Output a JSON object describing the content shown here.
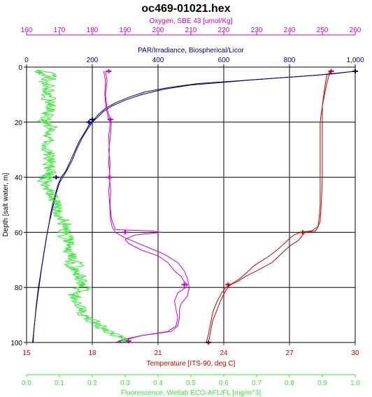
{
  "chart_data": {
    "type": "line",
    "title": "oc469-01021.hex",
    "grid": true,
    "y_axis": {
      "label": "Depth [salt water, m]",
      "range": [
        0,
        100
      ],
      "inverted": true,
      "ticks": [
        "0",
        "20",
        "40",
        "60",
        "80",
        "100"
      ],
      "color": "#000000"
    },
    "axes": [
      {
        "key": "oxygen",
        "position": "top-outer",
        "label": "Oxygen, SBE 43 [umol/Kg]",
        "range": [
          160,
          260
        ],
        "ticks": [
          "160",
          "170",
          "180",
          "190",
          "200",
          "210",
          "220",
          "230",
          "240",
          "250",
          "260"
        ],
        "color": "#cc00cc"
      },
      {
        "key": "par",
        "position": "top-inner",
        "label": "PAR/Irradiance, Biospherical/Licor",
        "range": [
          0,
          1000
        ],
        "ticks": [
          "0",
          "200",
          "400",
          "600",
          "800",
          "1,000"
        ],
        "color": "#000080"
      },
      {
        "key": "temperature",
        "position": "bottom-inner",
        "label": "Temperature [ITS-90, deg C]",
        "range": [
          15,
          30
        ],
        "ticks": [
          "15",
          "18",
          "21",
          "24",
          "27",
          "30"
        ],
        "color": "#cc0000"
      },
      {
        "key": "fluorescence",
        "position": "bottom-outer",
        "label": "Fluorescence, Wetlab ECO-AFL/FL [mg/m^3]",
        "range": [
          0,
          1
        ],
        "ticks": [
          "0.0",
          "0.1",
          "0.2",
          "0.3",
          "0.4",
          "0.5",
          "0.6",
          "0.7",
          "0.8",
          "0.9",
          "1.0"
        ],
        "color": "#33ee33"
      }
    ],
    "series": [
      {
        "axis": "par",
        "color": "#000080",
        "downcast": [
          [
            1000,
            1.5
          ],
          [
            960,
            2
          ],
          [
            880,
            3
          ],
          [
            760,
            4
          ],
          [
            640,
            5
          ],
          [
            520,
            6
          ],
          [
            430,
            7.5
          ],
          [
            360,
            9
          ],
          [
            310,
            11
          ],
          [
            270,
            13
          ],
          [
            240,
            15
          ],
          [
            220,
            17
          ],
          [
            205,
            19
          ],
          [
            190,
            21
          ],
          [
            175,
            24
          ],
          [
            160,
            27
          ],
          [
            145,
            31
          ],
          [
            130,
            35
          ],
          [
            118,
            38
          ],
          [
            105,
            40
          ],
          [
            95,
            43
          ],
          [
            85,
            47
          ],
          [
            75,
            52
          ],
          [
            68,
            57
          ],
          [
            60,
            62
          ],
          [
            52,
            68
          ],
          [
            44,
            74
          ],
          [
            36,
            80
          ],
          [
            30,
            86
          ],
          [
            25,
            92
          ],
          [
            20,
            98
          ],
          [
            18,
            100
          ]
        ],
        "upcast": [
          [
            1000,
            1.5
          ],
          [
            930,
            2.5
          ],
          [
            820,
            3.5
          ],
          [
            700,
            4.5
          ],
          [
            600,
            5.5
          ],
          [
            500,
            6.5
          ],
          [
            420,
            8
          ],
          [
            350,
            10
          ],
          [
            300,
            12
          ],
          [
            262,
            14
          ],
          [
            235,
            16
          ],
          [
            218,
            18
          ],
          [
            200,
            20
          ],
          [
            183,
            23
          ],
          [
            168,
            26
          ],
          [
            152,
            30
          ],
          [
            138,
            34
          ],
          [
            125,
            37
          ],
          [
            115,
            39
          ],
          [
            100,
            42
          ],
          [
            90,
            46
          ],
          [
            80,
            51
          ],
          [
            70,
            56
          ],
          [
            62,
            61
          ],
          [
            55,
            66
          ],
          [
            47,
            72
          ],
          [
            40,
            78
          ],
          [
            33,
            84
          ],
          [
            27,
            90
          ],
          [
            22,
            96
          ],
          [
            20,
            100
          ]
        ]
      },
      {
        "axis": "oxygen",
        "color": "#cc00cc",
        "downcast": [
          [
            183.5,
            1.5
          ],
          [
            184,
            5
          ],
          [
            183.8,
            10
          ],
          [
            184.2,
            15
          ],
          [
            185,
            19
          ],
          [
            185.5,
            20
          ],
          [
            185,
            25
          ],
          [
            185.2,
            30
          ],
          [
            185,
            35
          ],
          [
            185.4,
            40
          ],
          [
            185,
            45
          ],
          [
            185.3,
            50
          ],
          [
            185.5,
            55
          ],
          [
            186,
            58
          ],
          [
            187,
            60
          ],
          [
            190,
            62
          ],
          [
            194,
            64
          ],
          [
            198,
            66
          ],
          [
            202,
            68
          ],
          [
            206,
            71
          ],
          [
            208,
            74
          ],
          [
            209,
            77
          ],
          [
            209.5,
            80
          ],
          [
            209,
            83
          ],
          [
            207,
            86
          ],
          [
            206.5,
            88
          ],
          [
            206.5,
            91
          ],
          [
            206,
            94
          ],
          [
            204,
            96
          ],
          [
            195,
            97.5
          ],
          [
            191,
            98.5
          ],
          [
            188,
            99.5
          ],
          [
            189,
            100
          ]
        ],
        "upcast": [
          [
            184,
            1.5
          ],
          [
            184.5,
            5
          ],
          [
            184,
            10
          ],
          [
            184.5,
            15
          ],
          [
            185.2,
            18
          ],
          [
            185.8,
            20
          ],
          [
            185.5,
            25
          ],
          [
            185,
            30
          ],
          [
            185.4,
            35
          ],
          [
            185.2,
            40
          ],
          [
            185.6,
            45
          ],
          [
            185.4,
            50
          ],
          [
            185.8,
            55
          ],
          [
            187,
            59
          ],
          [
            198,
            59.5
          ],
          [
            201,
            60
          ],
          [
            193,
            61
          ],
          [
            190,
            62.5
          ],
          [
            191,
            64
          ],
          [
            195,
            66.5
          ],
          [
            200,
            68.5
          ],
          [
            203,
            71
          ],
          [
            205,
            74
          ],
          [
            207,
            76
          ],
          [
            208,
            78
          ],
          [
            209,
            79
          ],
          [
            208.5,
            80
          ],
          [
            206,
            82
          ],
          [
            205,
            85
          ],
          [
            205.5,
            88
          ],
          [
            206,
            91
          ],
          [
            205.5,
            94
          ],
          [
            203,
            96
          ],
          [
            195,
            97.5
          ],
          [
            190,
            99
          ],
          [
            187,
            100
          ]
        ]
      },
      {
        "axis": "temperature",
        "color": "#cc0000",
        "downcast": [
          [
            28.9,
            1.5
          ],
          [
            28.8,
            3
          ],
          [
            28.7,
            6
          ],
          [
            28.6,
            10
          ],
          [
            28.5,
            14
          ],
          [
            28.5,
            20
          ],
          [
            28.5,
            30
          ],
          [
            28.5,
            40
          ],
          [
            28.45,
            50
          ],
          [
            28.4,
            56
          ],
          [
            28.3,
            58
          ],
          [
            28.2,
            59.5
          ],
          [
            27.7,
            60
          ],
          [
            27.6,
            61
          ],
          [
            27.4,
            63
          ],
          [
            27.0,
            65
          ],
          [
            26.6,
            68
          ],
          [
            26.2,
            71
          ],
          [
            25.5,
            74
          ],
          [
            25.0,
            76
          ],
          [
            24.6,
            78
          ],
          [
            24.3,
            79
          ],
          [
            24.1,
            81
          ],
          [
            23.9,
            84
          ],
          [
            23.7,
            88
          ],
          [
            23.5,
            92
          ],
          [
            23.4,
            96
          ],
          [
            23.3,
            100
          ]
        ],
        "upcast": [
          [
            28.9,
            1.5
          ],
          [
            28.7,
            3
          ],
          [
            28.6,
            8
          ],
          [
            28.5,
            14
          ],
          [
            28.4,
            20
          ],
          [
            28.4,
            30
          ],
          [
            28.4,
            40
          ],
          [
            28.4,
            50
          ],
          [
            28.35,
            55
          ],
          [
            28.3,
            58
          ],
          [
            28.0,
            59.5
          ],
          [
            27.5,
            60
          ],
          [
            27.2,
            61
          ],
          [
            26.9,
            63
          ],
          [
            26.5,
            66
          ],
          [
            26.0,
            69
          ],
          [
            25.4,
            72
          ],
          [
            25.0,
            75
          ],
          [
            24.7,
            77
          ],
          [
            24.3,
            79
          ],
          [
            24.1,
            80
          ],
          [
            23.9,
            82
          ],
          [
            23.7,
            85
          ],
          [
            23.5,
            89
          ],
          [
            23.4,
            93
          ],
          [
            23.3,
            97
          ],
          [
            23.2,
            100
          ]
        ]
      },
      {
        "axis": "fluorescence",
        "color": "#33ee33",
        "jitter": 0.018,
        "profile": [
          [
            0.03,
            1
          ],
          [
            0.06,
            3
          ],
          [
            0.05,
            5
          ],
          [
            0.07,
            8
          ],
          [
            0.05,
            11
          ],
          [
            0.08,
            14
          ],
          [
            0.06,
            17
          ],
          [
            0.05,
            20
          ],
          [
            0.07,
            23
          ],
          [
            0.06,
            27
          ],
          [
            0.07,
            31
          ],
          [
            0.06,
            35
          ],
          [
            0.08,
            38
          ],
          [
            0.06,
            40
          ],
          [
            0.07,
            43
          ],
          [
            0.08,
            47
          ],
          [
            0.09,
            50
          ],
          [
            0.1,
            54
          ],
          [
            0.11,
            58
          ],
          [
            0.12,
            60
          ],
          [
            0.13,
            63
          ],
          [
            0.12,
            66
          ],
          [
            0.14,
            69
          ],
          [
            0.13,
            72
          ],
          [
            0.15,
            75
          ],
          [
            0.17,
            78
          ],
          [
            0.19,
            80
          ],
          [
            0.15,
            83
          ],
          [
            0.16,
            86
          ],
          [
            0.17,
            90
          ],
          [
            0.2,
            93
          ],
          [
            0.24,
            96
          ],
          [
            0.28,
            98
          ],
          [
            0.3,
            100
          ]
        ],
        "profile2": [
          [
            0.05,
            1
          ],
          [
            0.08,
            3
          ],
          [
            0.07,
            6
          ],
          [
            0.06,
            9
          ],
          [
            0.09,
            12
          ],
          [
            0.07,
            15
          ],
          [
            0.06,
            19
          ],
          [
            0.08,
            22
          ],
          [
            0.07,
            26
          ],
          [
            0.06,
            30
          ],
          [
            0.08,
            34
          ],
          [
            0.07,
            38
          ],
          [
            0.05,
            41
          ],
          [
            0.07,
            45
          ],
          [
            0.09,
            49
          ],
          [
            0.1,
            53
          ],
          [
            0.12,
            57
          ],
          [
            0.11,
            61
          ],
          [
            0.14,
            64
          ],
          [
            0.13,
            68
          ],
          [
            0.16,
            71
          ],
          [
            0.15,
            74
          ],
          [
            0.17,
            77
          ],
          [
            0.16,
            79
          ],
          [
            0.14,
            82
          ],
          [
            0.15,
            85
          ],
          [
            0.17,
            88
          ],
          [
            0.19,
            91
          ],
          [
            0.23,
            94
          ],
          [
            0.27,
            97
          ],
          [
            0.3,
            99
          ]
        ]
      }
    ],
    "markers": [
      {
        "axis": "par",
        "points": [
          [
            1000,
            1.5
          ],
          [
            200,
            19
          ],
          [
            190,
            20
          ],
          [
            90,
            40
          ]
        ]
      },
      {
        "axis": "oxygen",
        "points": [
          [
            185,
            1.5
          ],
          [
            185.5,
            19
          ],
          [
            185.2,
            40
          ],
          [
            190,
            60
          ],
          [
            208,
            79
          ],
          [
            191,
            99.5
          ]
        ]
      },
      {
        "axis": "temperature",
        "points": [
          [
            28.9,
            1.5
          ],
          [
            27.6,
            60
          ],
          [
            24.2,
            79
          ],
          [
            23.3,
            100
          ]
        ]
      },
      {
        "axis": "fluorescence",
        "points": [
          [
            0.04,
            2
          ],
          [
            0.06,
            20
          ],
          [
            0.07,
            40
          ],
          [
            0.12,
            60
          ],
          [
            0.17,
            79
          ],
          [
            0.3,
            99
          ]
        ]
      }
    ]
  }
}
